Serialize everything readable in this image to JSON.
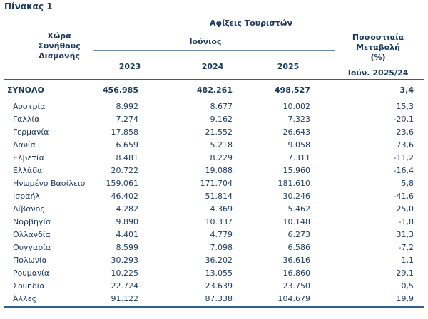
{
  "table_label": "Πίνακας 1",
  "header": {
    "country_col": [
      "Χώρα",
      "Συνήθους",
      "Διαμονής"
    ],
    "arrivals_group": "Αφίξεις Τουριστών",
    "month": "Ιούνιος",
    "years": [
      "2023",
      "2024",
      "2025"
    ],
    "pct_col": [
      "Ποσοστιαία",
      "Μεταβολή",
      "(%)"
    ],
    "pct_period": "Ιούν. 2025/24"
  },
  "total": {
    "name": "ΣΥΝΟΛΟ",
    "y2023": "456.985",
    "y2024": "482.261",
    "y2025": "498.527",
    "pct": "3,4"
  },
  "rows": [
    {
      "name": "Αυστρία",
      "y2023": "8.992",
      "y2024": "8.677",
      "y2025": "10.002",
      "pct": "15,3"
    },
    {
      "name": "Γαλλία",
      "y2023": "7.274",
      "y2024": "9.162",
      "y2025": "7.323",
      "pct": "-20,1"
    },
    {
      "name": "Γερμανία",
      "y2023": "17.858",
      "y2024": "21.552",
      "y2025": "26.643",
      "pct": "23,6"
    },
    {
      "name": "Δανία",
      "y2023": "6.659",
      "y2024": "5.218",
      "y2025": "9.058",
      "pct": "73,6"
    },
    {
      "name": "Ελβετία",
      "y2023": "8.481",
      "y2024": "8.229",
      "y2025": "7.311",
      "pct": "-11,2"
    },
    {
      "name": "Ελλάδα",
      "y2023": "20.722",
      "y2024": "19.088",
      "y2025": "15.960",
      "pct": "-16,4"
    },
    {
      "name": "Ηνωμένο Βασίλειο",
      "y2023": "159.061",
      "y2024": "171.704",
      "y2025": "181.610",
      "pct": "5,8"
    },
    {
      "name": "Ισραήλ",
      "y2023": "46.402",
      "y2024": "51.814",
      "y2025": "30.246",
      "pct": "-41,6"
    },
    {
      "name": "Λίβανος",
      "y2023": "4.282",
      "y2024": "4.369",
      "y2025": "5.462",
      "pct": "25,0"
    },
    {
      "name": "Νορβηγία",
      "y2023": "9.890",
      "y2024": "10.337",
      "y2025": "10.148",
      "pct": "-1,8"
    },
    {
      "name": "Ολλανδία",
      "y2023": "4.401",
      "y2024": "4.779",
      "y2025": "6.273",
      "pct": "31,3"
    },
    {
      "name": "Ουγγαρία",
      "y2023": "8.599",
      "y2024": "7.098",
      "y2025": "6.586",
      "pct": "-7,2"
    },
    {
      "name": "Πολωνία",
      "y2023": "30.293",
      "y2024": "36.202",
      "y2025": "36.616",
      "pct": "1,1"
    },
    {
      "name": "Ρουμανία",
      "y2023": "10.225",
      "y2024": "13.055",
      "y2025": "16.860",
      "pct": "29,1"
    },
    {
      "name": "Σουηδία",
      "y2023": "22.724",
      "y2024": "23.639",
      "y2025": "23.750",
      "pct": "0,5"
    },
    {
      "name": "Άλλες",
      "y2023": "91.122",
      "y2024": "87.338",
      "y2025": "104.679",
      "pct": "19,9"
    }
  ]
}
